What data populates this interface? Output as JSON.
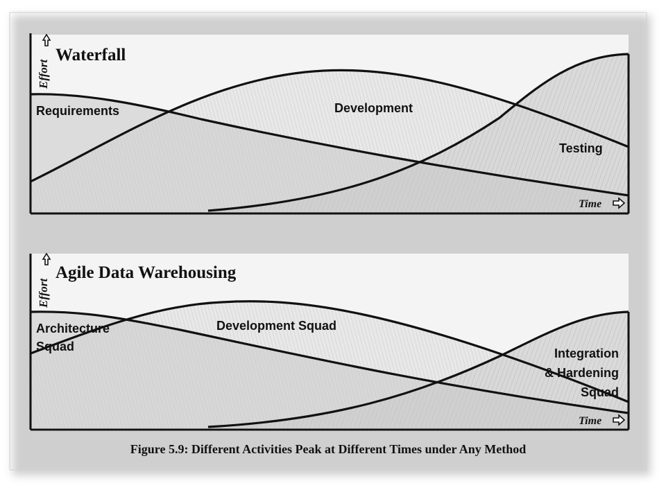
{
  "figure": {
    "caption": "Figure 5.9: Different Activities Peak at Different Times under Any Method"
  },
  "panels": [
    {
      "title": "Waterfall",
      "y_axis_label": "Effort",
      "x_axis_label": "Time",
      "curves": [
        {
          "label_lines": [
            "Requirements"
          ]
        },
        {
          "label_lines": [
            "Development"
          ]
        },
        {
          "label_lines": [
            "Testing"
          ]
        }
      ]
    },
    {
      "title": "Agile Data Warehousing",
      "y_axis_label": "Effort",
      "x_axis_label": "Time",
      "curves": [
        {
          "label_lines": [
            "Architecture",
            "Squad"
          ]
        },
        {
          "label_lines": [
            "Development Squad"
          ]
        },
        {
          "label_lines": [
            "Integration",
            "& Hardening",
            "Squad"
          ]
        }
      ]
    }
  ],
  "icons": {
    "up_arrow": "up-outline-arrow-icon",
    "right_arrow": "right-outline-arrow-icon"
  },
  "colors": {
    "ink": "#111111",
    "fill_light": "#e6e6e6",
    "fill_mid": "#cfcfcf",
    "fill_dark": "#bdbdbd"
  }
}
